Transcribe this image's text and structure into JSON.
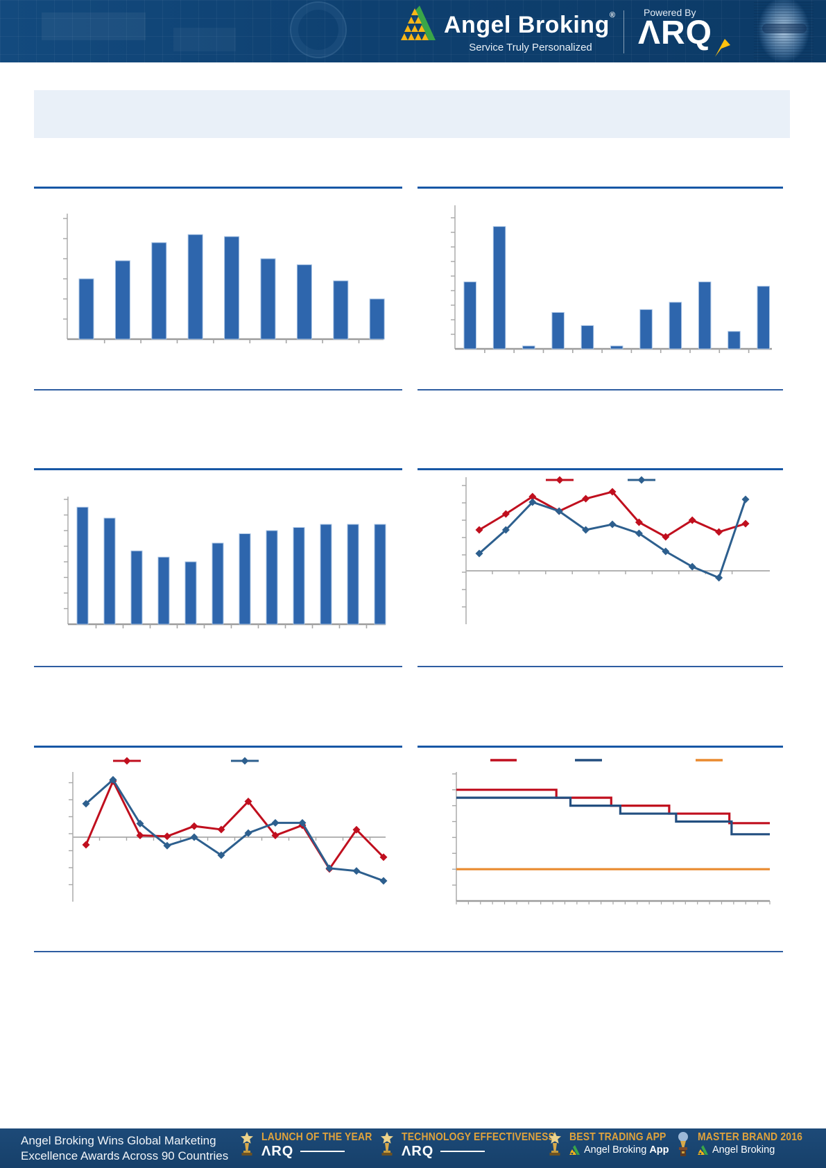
{
  "header": {
    "brand": "Angel Broking",
    "registered_mark": "®",
    "tagline": "Service Truly Personalized",
    "powered_by": "Powered By",
    "arq_wordmark": "ΛRQ"
  },
  "chart_data": [
    {
      "id": "exhibit-1",
      "panel": "top-left",
      "type": "bar",
      "title": "",
      "xlabel": "",
      "ylabel": "",
      "values": [
        3.0,
        3.9,
        4.8,
        5.2,
        5.1,
        4.0,
        3.7,
        2.9,
        2.0
      ],
      "ylim": [
        0,
        6.2
      ],
      "grid": false,
      "tick_labels_visible": false,
      "bar_color": "#2e66ad"
    },
    {
      "id": "exhibit-2",
      "panel": "top-right",
      "type": "bar",
      "title": "",
      "xlabel": "",
      "ylabel": "",
      "values": [
        4.6,
        8.4,
        0.2,
        2.5,
        1.6,
        0.2,
        2.7,
        3.2,
        4.6,
        1.2,
        4.3
      ],
      "ylim": [
        0,
        9.9
      ],
      "grid": false,
      "tick_labels_visible": false,
      "bar_color": "#2e66ad"
    },
    {
      "id": "exhibit-3",
      "panel": "middle-left",
      "type": "bar",
      "title": "",
      "xlabel": "",
      "ylabel": "",
      "values": [
        7.5,
        6.8,
        4.7,
        4.3,
        4.0,
        5.2,
        5.8,
        6.0,
        6.2,
        6.4,
        6.4,
        6.4
      ],
      "ylim": [
        0,
        8.2
      ],
      "grid": false,
      "tick_labels_visible": false,
      "bar_color": "#2e66ad"
    },
    {
      "id": "exhibit-4",
      "panel": "middle-right",
      "type": "line",
      "title": "",
      "xlabel": "",
      "ylabel": "",
      "legend_position": "top",
      "legend_text_visible": false,
      "series": [
        {
          "name": "red",
          "color": "#c00f1e",
          "values": [
            1.18,
            1.64,
            2.14,
            1.72,
            2.08,
            2.28,
            1.4,
            0.98,
            1.46,
            1.12,
            1.36
          ]
        },
        {
          "name": "navy",
          "color": "#2d5f8e",
          "values": [
            0.5,
            1.18,
            1.98,
            1.72,
            1.18,
            1.34,
            1.08,
            0.56,
            0.12,
            -0.2,
            2.06
          ]
        }
      ],
      "ylim": [
        -1.55,
        2.7
      ],
      "grid": false,
      "zero_line": true
    },
    {
      "id": "exhibit-5",
      "panel": "bottom-left",
      "type": "line",
      "title": "",
      "xlabel": "",
      "ylabel": "",
      "legend_position": "top",
      "legend_text_visible": false,
      "series": [
        {
          "name": "red",
          "color": "#c00f1e",
          "values": [
            -0.45,
            3.3,
            0.1,
            0.05,
            0.65,
            0.45,
            2.1,
            0.1,
            0.7,
            -1.87,
            0.44,
            -1.18
          ]
        },
        {
          "name": "navy",
          "color": "#2d5f8e",
          "values": [
            1.97,
            3.38,
            0.8,
            -0.5,
            0.0,
            -1.06,
            0.24,
            0.84,
            0.84,
            -1.83,
            -1.99,
            -2.57
          ]
        }
      ],
      "ylim": [
        -3.8,
        3.85
      ],
      "grid": false,
      "zero_line": true
    },
    {
      "id": "exhibit-6",
      "panel": "bottom-right",
      "type": "step",
      "title": "",
      "xlabel": "",
      "ylabel": "",
      "legend_position": "top",
      "legend_text_visible": false,
      "series": [
        {
          "name": "red",
          "color": "#c00f1e",
          "steps": [
            {
              "from": 0,
              "to": 0.319,
              "value": 7.0
            },
            {
              "to": 0.494,
              "value": 6.5
            },
            {
              "to": 0.679,
              "value": 6.0
            },
            {
              "to": 0.871,
              "value": 5.5
            },
            {
              "to": 1.0,
              "value": 4.9
            }
          ]
        },
        {
          "name": "navy",
          "color": "#234f80",
          "steps": [
            {
              "from": 0,
              "to": 0.364,
              "value": 6.5
            },
            {
              "to": 0.523,
              "value": 6.0
            },
            {
              "to": 0.701,
              "value": 5.5
            },
            {
              "to": 0.878,
              "value": 5.0
            },
            {
              "to": 1.0,
              "value": 4.2
            }
          ]
        },
        {
          "name": "orange",
          "color": "#e98a2f",
          "steps": [
            {
              "from": 0,
              "to": 1.0,
              "value": 2.0
            }
          ]
        }
      ],
      "ylim": [
        0,
        8.1
      ],
      "grid": false
    }
  ],
  "footer": {
    "message_line1": "Angel Broking Wins Global Marketing",
    "message_line2": "Excellence Awards Across 90 Countries",
    "awards": [
      {
        "title": "LAUNCH OF THE YEAR",
        "subtitle": "ΛRQ",
        "subtitle_bold": "",
        "icon": "star-trophy"
      },
      {
        "title": "TECHNOLOGY EFFECTIVENESS",
        "subtitle": "ΛRQ",
        "subtitle_bold": "",
        "icon": "star-trophy"
      },
      {
        "title": "BEST TRADING APP",
        "subtitle": "Angel Broking",
        "subtitle_bold": "App",
        "icon": "star-trophy"
      },
      {
        "title": "MASTER BRAND 2016",
        "subtitle": "Angel Broking",
        "subtitle_bold": "",
        "icon": "globe-trophy"
      }
    ]
  },
  "colors": {
    "rule_thick": "#1757a5",
    "rule_thin": "#2e5da1",
    "bar_blue": "#2e66ad",
    "line_red": "#c00f1e",
    "line_navy": "#2d5f8e",
    "line_orange": "#e98a2f",
    "header_bg": "#0e4070",
    "footer_bg": "#1a4570",
    "banner_bg": "#e9f0f8",
    "award_gold": "#e0a33c"
  }
}
